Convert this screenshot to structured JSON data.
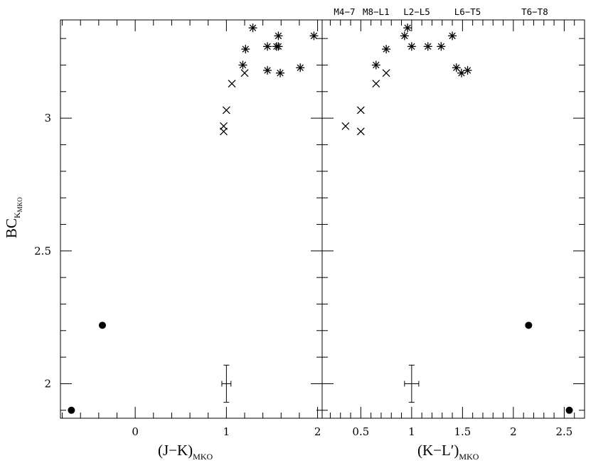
{
  "chart_data": [
    {
      "type": "scatter",
      "panel": "left",
      "xlabel": {
        "main": "(J−K)",
        "sub": "MKO"
      },
      "ylabel": {
        "main": "BC",
        "sub": "K",
        "subsub": "MKO"
      },
      "xlim": [
        -0.82,
        2.05
      ],
      "ylim": [
        1.87,
        3.37
      ],
      "x_ticks_labeled": [
        0,
        1,
        2
      ],
      "x_tick_labels": [
        "0",
        "1",
        "2"
      ],
      "y_ticks_labeled": [
        2,
        2.5,
        3
      ],
      "y_tick_labels": [
        "2",
        "2.5",
        "3"
      ],
      "series": [
        {
          "marker": "dot",
          "points": [
            [
              -0.36,
              2.22
            ],
            [
              -0.7,
              1.9
            ]
          ]
        },
        {
          "marker": "cross",
          "points": [
            [
              0.97,
              2.97
            ],
            [
              0.97,
              2.95
            ],
            [
              1.0,
              3.03
            ],
            [
              1.06,
              3.13
            ],
            [
              1.2,
              3.17
            ]
          ]
        },
        {
          "marker": "asterisk",
          "points": [
            [
              1.18,
              3.2
            ],
            [
              1.21,
              3.26
            ],
            [
              1.29,
              3.34
            ],
            [
              1.45,
              3.27
            ],
            [
              1.55,
              3.27
            ],
            [
              1.57,
              3.31
            ],
            [
              1.57,
              3.27
            ],
            [
              1.45,
              3.18
            ],
            [
              1.59,
              3.17
            ],
            [
              1.81,
              3.19
            ],
            [
              1.96,
              3.31
            ]
          ]
        }
      ],
      "error_bar": {
        "x": 1.0,
        "y": 2.0,
        "xerr": 0.05,
        "yerr": 0.07
      }
    },
    {
      "type": "scatter",
      "panel": "right",
      "xlabel": {
        "main": "(K−L′)",
        "sub": "MKO"
      },
      "xlim": [
        0.12,
        2.7
      ],
      "ylim": [
        1.87,
        3.37
      ],
      "x_ticks_labeled": [
        0.5,
        1,
        1.5,
        2,
        2.5
      ],
      "x_tick_labels": [
        "0.5",
        "1",
        "1.5",
        "2",
        "2.5"
      ],
      "spectral_type_labels": [
        {
          "text": "M4−7",
          "x": 0.34
        },
        {
          "text": "M8−L1",
          "x": 0.65
        },
        {
          "text": "L2−L5",
          "x": 1.05
        },
        {
          "text": "L6−T5",
          "x": 1.55
        },
        {
          "text": "T6−T8",
          "x": 2.21
        }
      ],
      "series": [
        {
          "marker": "dot",
          "points": [
            [
              2.15,
              2.22
            ],
            [
              2.55,
              1.9
            ]
          ]
        },
        {
          "marker": "cross",
          "points": [
            [
              0.35,
              2.97
            ],
            [
              0.5,
              2.95
            ],
            [
              0.5,
              3.03
            ],
            [
              0.65,
              3.13
            ],
            [
              0.75,
              3.17
            ]
          ]
        },
        {
          "marker": "asterisk",
          "points": [
            [
              0.65,
              3.2
            ],
            [
              0.75,
              3.26
            ],
            [
              0.93,
              3.31
            ],
            [
              0.96,
              3.34
            ],
            [
              1.0,
              3.27
            ],
            [
              1.16,
              3.27
            ],
            [
              1.29,
              3.27
            ],
            [
              1.4,
              3.31
            ],
            [
              1.44,
              3.19
            ],
            [
              1.49,
              3.17
            ],
            [
              1.55,
              3.18
            ]
          ]
        }
      ],
      "error_bar": {
        "x": 1.0,
        "y": 2.0,
        "xerr": 0.07,
        "yerr": 0.07
      }
    }
  ]
}
